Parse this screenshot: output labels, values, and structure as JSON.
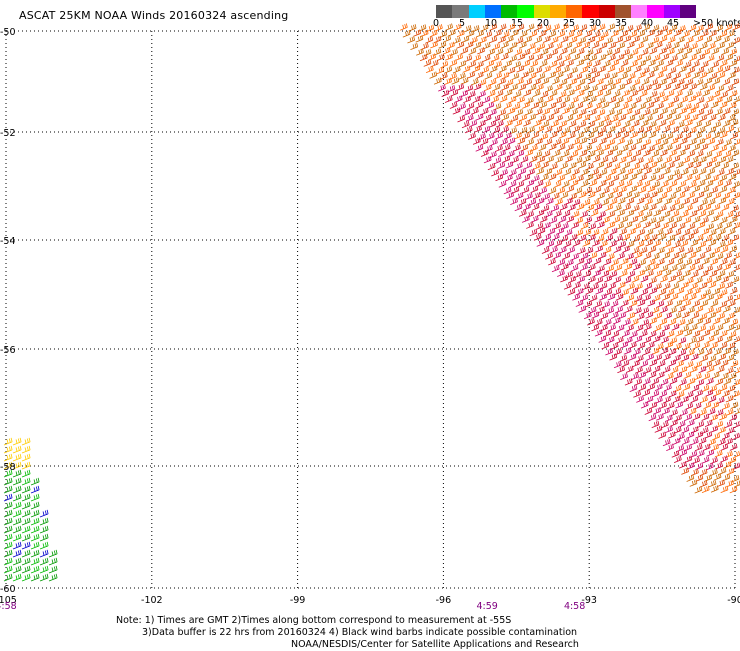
{
  "title": "ASCAT 25KM NOAA Winds 20160324 ascending",
  "colorbar": {
    "colors": [
      "#555555",
      "#7a7a7a",
      "#00cfff",
      "#0070ff",
      "#00bb00",
      "#00ff00",
      "#dddd00",
      "#ffaa00",
      "#ff6600",
      "#ff0000",
      "#cc0000",
      "#a0522d",
      "#ff80ff",
      "#ff00ff",
      "#a000ff",
      "#600080"
    ],
    "labels": [
      "0",
      "5",
      "10",
      "15",
      "20",
      "25",
      "30",
      "35",
      "40",
      "45",
      ">50 knots"
    ]
  },
  "axes": {
    "lon_ticks": [
      "-105",
      "-102",
      "-99",
      "-96",
      "-93",
      "-90"
    ],
    "lat_ticks": [
      "-50",
      "-52",
      "-54",
      "-56",
      "-58",
      "-60"
    ],
    "lon_range": [
      -105,
      -90
    ],
    "lat_range": [
      -50,
      -60
    ]
  },
  "swaths": {
    "east_swath_colors": [
      "#cc6600",
      "#ff6600",
      "#dd4400",
      "#cc0033",
      "#cc0066"
    ],
    "west_swath_colors": [
      "#009900",
      "#00bb00",
      "#0000cc",
      "#ffcc00"
    ]
  },
  "times": [
    {
      "label": "4:58",
      "lon": -105
    },
    {
      "label": "4:59",
      "lon": -95.1
    },
    {
      "label": "4:58",
      "lon": -93.3
    }
  ],
  "notes": {
    "line1": "Note: 1) Times are GMT 2)Times along bottom correspond to measurement at -55S",
    "line2": "3)Data buffer is 22 hrs from 20160324 4) Black wind barbs indicate possible contamination",
    "line3": "NOAA/NESDIS/Center for Satellite Applications and Research"
  }
}
